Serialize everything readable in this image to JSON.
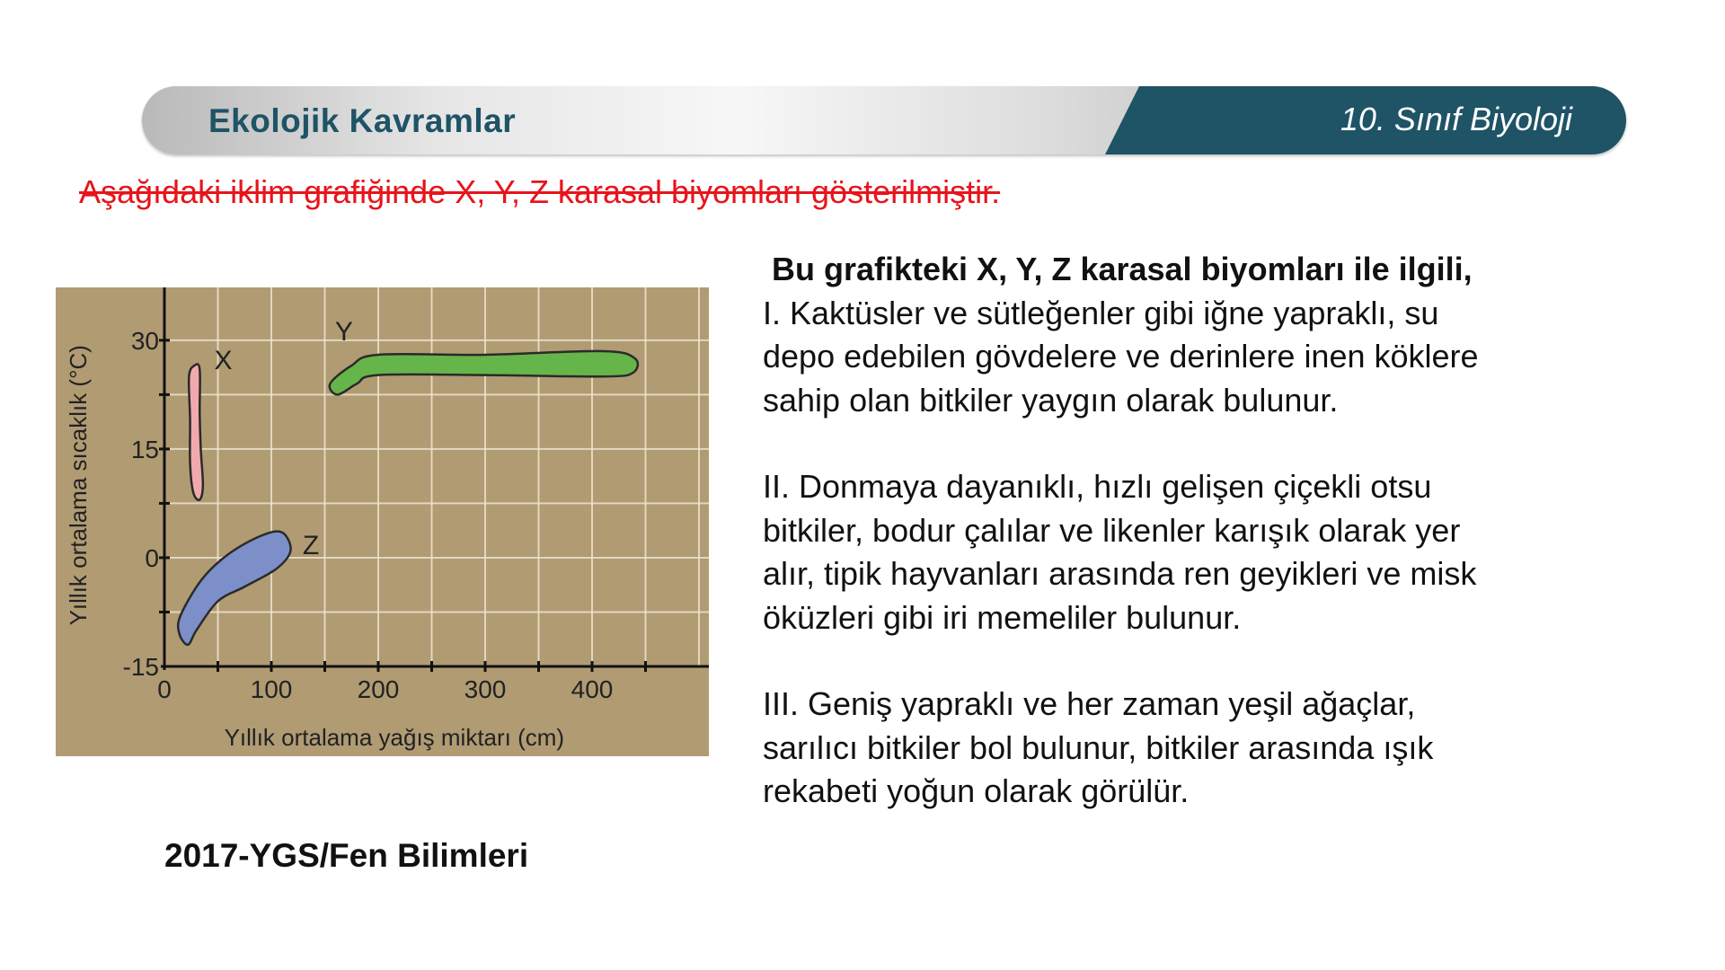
{
  "header": {
    "title": "Ekolojik Kavramlar",
    "subtitle": "10. Sınıf Biyoloji",
    "colors": {
      "accent": "#1f5366"
    }
  },
  "intro": "Aşağıdaki iklim grafiğinde X, Y, Z karasal biyomları gösterilmiştir.",
  "question": {
    "heading": "Bu grafikteki X, Y, Z karasal biyomları ile ilgili,",
    "items": [
      [
        "I. Kaktüsler ve sütleğenler gibi iğne yapraklı, su",
        "depo edebilen gövdelere ve derinlere inen köklere",
        "sahip olan bitkiler yaygın olarak bulunur."
      ],
      [
        "II. Donmaya dayanıklı, hızlı gelişen çiçekli otsu",
        "bitkiler, bodur çalılar ve likenler karışık olarak yer",
        "alır, tipik hayvanları arasında ren geyikleri ve misk",
        "öküzleri gibi iri memeliler bulunur."
      ],
      [
        "III. Geniş yapraklı ve her zaman yeşil ağaçlar,",
        "sarılıcı bitkiler bol bulunur, bitkiler arasında ışık",
        "rekabeti yoğun olarak görülür."
      ]
    ]
  },
  "source": "2017-YGS/Fen Bilimleri",
  "chart_data": {
    "type": "area",
    "xlabel": "Yıllık ortalama yağış miktarı (cm)",
    "ylabel": "Yıllık ortalama sıcaklık (°C)",
    "xlim": [
      0,
      500
    ],
    "ylim": [
      -15,
      37
    ],
    "xticks": [
      0,
      100,
      200,
      300,
      400
    ],
    "yticks": [
      -15,
      0,
      15,
      30
    ],
    "grid": true,
    "background": "#b09b73",
    "regions": [
      {
        "name": "X",
        "color": "#f2a9ad",
        "label_at": [
          55,
          26
        ],
        "outline": [
          [
            28,
            26.5
          ],
          [
            33,
            26
          ],
          [
            33,
            20
          ],
          [
            34,
            15
          ],
          [
            36,
            10
          ],
          [
            33,
            8
          ],
          [
            27,
            9
          ],
          [
            24,
            13
          ],
          [
            24,
            19
          ],
          [
            23,
            25
          ]
        ]
      },
      {
        "name": "Y",
        "color": "#66b54a",
        "label_at": [
          168,
          30
        ],
        "outline": [
          [
            155,
            24
          ],
          [
            175,
            26.5
          ],
          [
            200,
            28
          ],
          [
            300,
            28
          ],
          [
            410,
            28.5
          ],
          [
            440,
            27.5
          ],
          [
            438,
            25.5
          ],
          [
            410,
            25
          ],
          [
            300,
            25.2
          ],
          [
            200,
            25.2
          ],
          [
            180,
            24
          ],
          [
            162,
            22.5
          ]
        ]
      },
      {
        "name": "Z",
        "color": "#7c8fc9",
        "label_at": [
          137,
          0.5
        ],
        "outline": [
          [
            15,
            -8
          ],
          [
            35,
            -3
          ],
          [
            60,
            0.5
          ],
          [
            90,
            3
          ],
          [
            110,
            3.5
          ],
          [
            118,
            1
          ],
          [
            105,
            -1.5
          ],
          [
            75,
            -4
          ],
          [
            50,
            -6
          ],
          [
            30,
            -10
          ],
          [
            22,
            -12
          ],
          [
            14,
            -10.5
          ]
        ]
      }
    ]
  }
}
